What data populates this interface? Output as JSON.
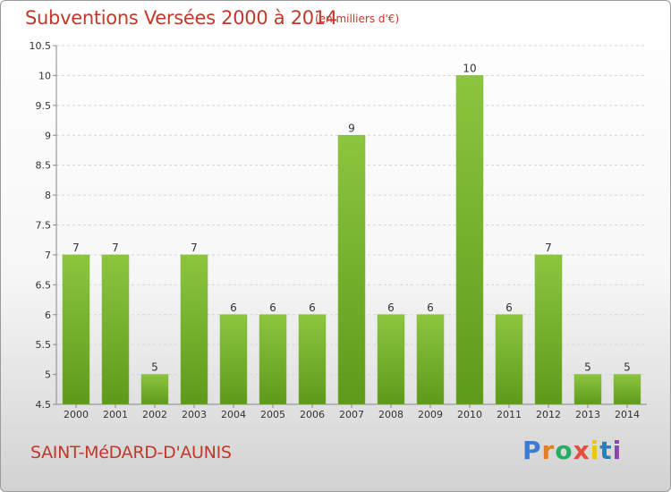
{
  "header": {
    "title": "Subventions Versées 2000 à 2014",
    "subtitle": "(en milliers d'€)"
  },
  "footer": {
    "commune": "SAINT-MéDARD-D'AUNIS",
    "logo": [
      "P",
      "r",
      "o",
      "x",
      "i",
      "t",
      "i"
    ],
    "logo_colors": [
      "#3a7bd5",
      "#e67e22",
      "#27ae60",
      "#e74c3c",
      "#f1c40f",
      "#2980b9",
      "#8e44ad"
    ]
  },
  "chart_data": {
    "type": "bar",
    "categories": [
      "2000",
      "2001",
      "2002",
      "2003",
      "2004",
      "2005",
      "2006",
      "2007",
      "2008",
      "2009",
      "2010",
      "2011",
      "2012",
      "2013",
      "2014"
    ],
    "values": [
      7,
      7,
      5,
      7,
      6,
      6,
      6,
      9,
      6,
      6,
      10,
      6,
      7,
      5,
      5
    ],
    "data_labels": [
      "7",
      "7",
      "5",
      "7",
      "6",
      "6",
      "6",
      "9",
      "6",
      "6",
      "10",
      "6",
      "7",
      "5",
      "5"
    ],
    "yticks": [
      "4.5",
      "5",
      "5.5",
      "6",
      "6.5",
      "7",
      "7.5",
      "8",
      "8.5",
      "9",
      "9.5",
      "10",
      "10.5"
    ],
    "ylim": [
      4.5,
      10.5
    ],
    "grid": true,
    "bar_color": "#8cc63f",
    "bar_color_dark": "#5e9a1a"
  }
}
